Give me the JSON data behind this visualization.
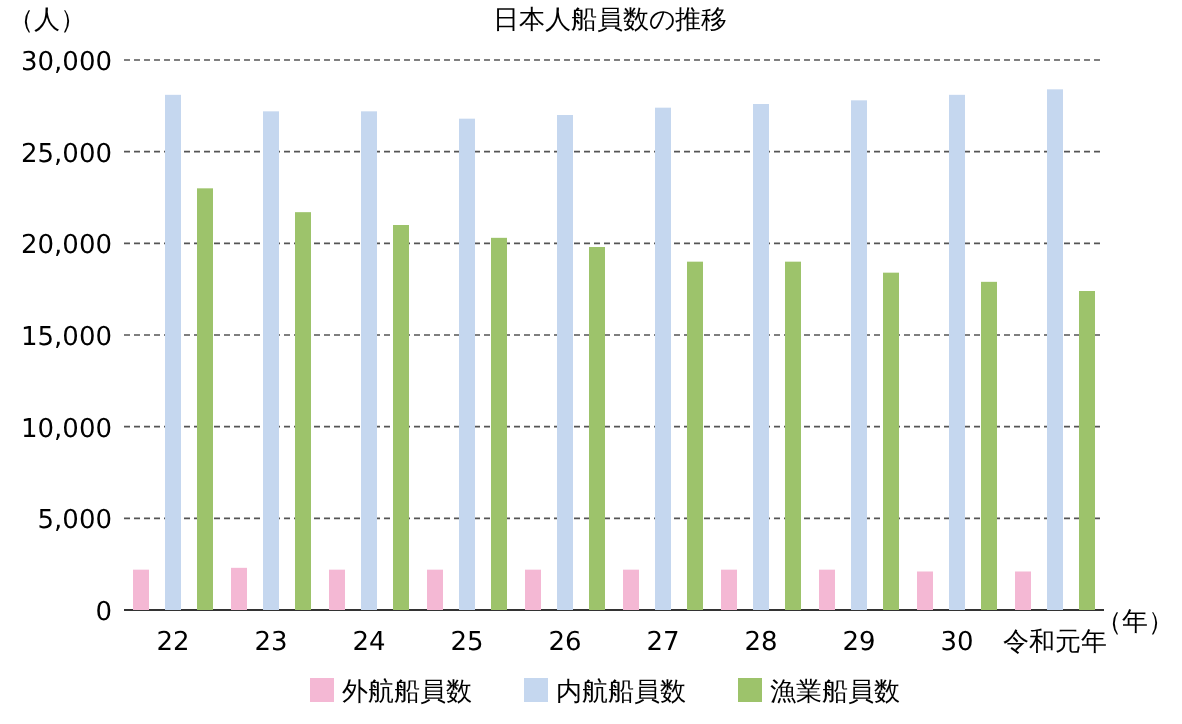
{
  "chart_data": {
    "type": "bar",
    "title": "日本人船員数の推移",
    "ylabel": "（人）",
    "xlabel": "（年）",
    "categories": [
      "22",
      "23",
      "24",
      "25",
      "26",
      "27",
      "28",
      "29",
      "30",
      "令和元年"
    ],
    "series": [
      {
        "name": "外航船員数",
        "color": "#f4b8d4",
        "values": [
          2200,
          2300,
          2200,
          2200,
          2200,
          2200,
          2200,
          2200,
          2100,
          2100
        ]
      },
      {
        "name": "内航船員数",
        "color": "#c5d7ef",
        "values": [
          28100,
          27200,
          27200,
          26800,
          27000,
          27400,
          27600,
          27800,
          28100,
          28400
        ]
      },
      {
        "name": "漁業船員数",
        "color": "#9dc36b",
        "values": [
          23000,
          21700,
          21000,
          20300,
          19800,
          19000,
          19000,
          18400,
          17900,
          17400
        ]
      }
    ],
    "ylim": [
      0,
      30000
    ],
    "yticks": [
      {
        "value": 0,
        "label": "0"
      },
      {
        "value": 5000,
        "label": "5,000"
      },
      {
        "value": 10000,
        "label": "10,000"
      },
      {
        "value": 15000,
        "label": "15,000"
      },
      {
        "value": 20000,
        "label": "20,000"
      },
      {
        "value": 25000,
        "label": "25,000"
      },
      {
        "value": 30000,
        "label": "30,000"
      }
    ],
    "grid": "y",
    "legend": "bottom"
  }
}
